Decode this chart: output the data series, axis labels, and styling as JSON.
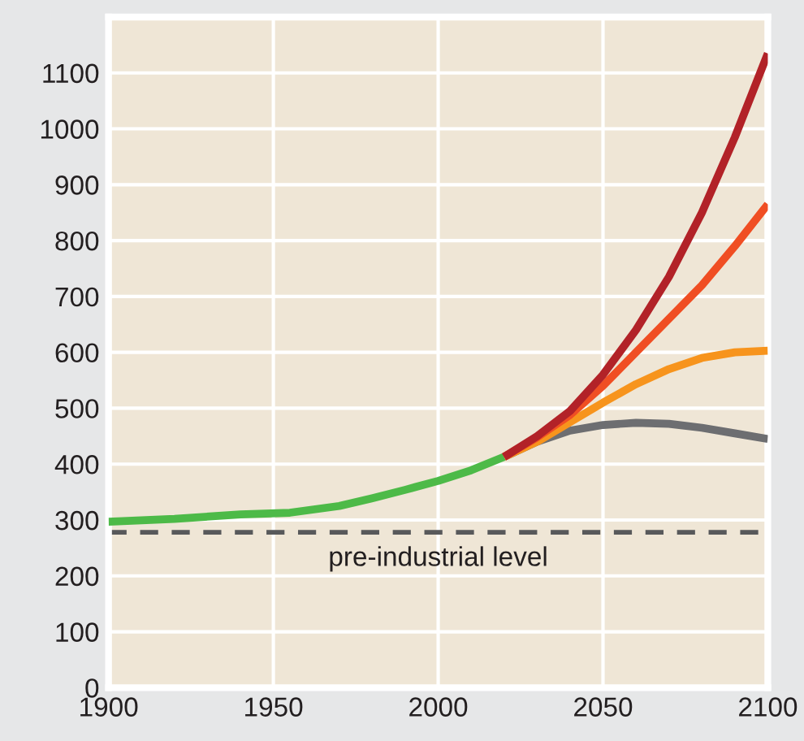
{
  "chart_data": {
    "type": "line",
    "xlim": [
      1900,
      2100
    ],
    "ylim": [
      0,
      1200
    ],
    "xticks": [
      1900,
      1950,
      2000,
      2050,
      2100
    ],
    "yticks": [
      0,
      100,
      200,
      300,
      400,
      500,
      600,
      700,
      800,
      900,
      1000,
      1100
    ],
    "grid": true,
    "marker": "none",
    "line_style": "solid",
    "series": [
      {
        "color": "#4dba48",
        "x": [
          1900,
          1920,
          1940,
          1955,
          1970,
          1980,
          1990,
          2000,
          2010,
          2020
        ],
        "values": [
          297,
          302,
          310,
          313,
          325,
          339,
          354,
          370,
          389,
          413
        ]
      },
      {
        "color": "#6d6e71",
        "x": [
          2020,
          2030,
          2040,
          2050,
          2060,
          2070,
          2080,
          2090,
          2100
        ],
        "values": [
          413,
          440,
          460,
          470,
          474,
          472,
          465,
          455,
          445
        ]
      },
      {
        "color": "#f7941d",
        "x": [
          2020,
          2030,
          2040,
          2050,
          2060,
          2070,
          2080,
          2090,
          2100
        ],
        "values": [
          413,
          440,
          475,
          510,
          543,
          570,
          590,
          600,
          603
        ]
      },
      {
        "color": "#f04e23",
        "x": [
          2020,
          2030,
          2040,
          2050,
          2060,
          2070,
          2080,
          2090,
          2100
        ],
        "values": [
          413,
          448,
          488,
          540,
          600,
          660,
          720,
          790,
          865
        ]
      },
      {
        "color": "#b22228",
        "x": [
          2020,
          2030,
          2040,
          2050,
          2060,
          2070,
          2080,
          2090,
          2100
        ],
        "values": [
          413,
          450,
          495,
          560,
          640,
          735,
          850,
          985,
          1135
        ]
      }
    ],
    "ref_lines": [
      {
        "axis": "y",
        "value": 278,
        "label": "pre-industrial level",
        "color": "#58595b",
        "line_style": "dashed"
      }
    ]
  }
}
